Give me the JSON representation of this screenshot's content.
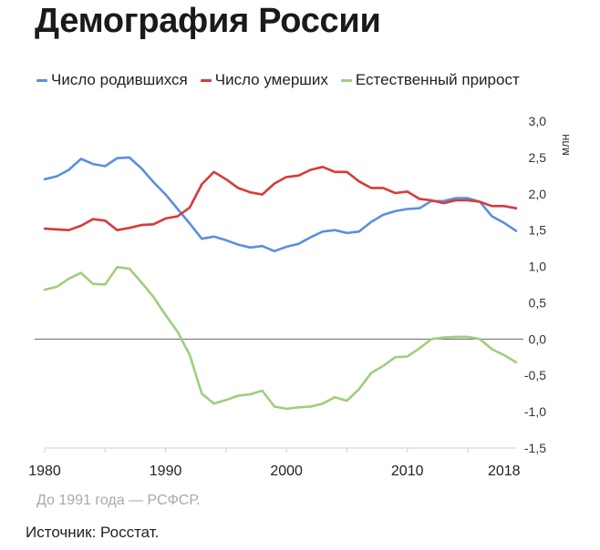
{
  "title": "Демография России",
  "note": "До 1991 года — РСФСР.",
  "source": "Источник: Росстат.",
  "chart_data": {
    "type": "line",
    "title": "Демография России",
    "ylabel": "млн",
    "xlabel": "",
    "ylim": [
      -1.5,
      3.0
    ],
    "xlim": [
      1980,
      2019
    ],
    "x_ticks": [
      {
        "value": 1980,
        "label": "1980"
      },
      {
        "value": 1990,
        "label": "1990"
      },
      {
        "value": 2000,
        "label": "2000"
      },
      {
        "value": 2010,
        "label": "2010"
      },
      {
        "value": 2018,
        "label": "2018"
      }
    ],
    "y_ticks": [
      {
        "value": 3.0,
        "label": "3,0"
      },
      {
        "value": 2.5,
        "label": "2,5"
      },
      {
        "value": 2.0,
        "label": "2,0"
      },
      {
        "value": 1.5,
        "label": "1,5"
      },
      {
        "value": 1.0,
        "label": "1,0"
      },
      {
        "value": 0.5,
        "label": "0,5"
      },
      {
        "value": 0.0,
        "label": "0,0"
      },
      {
        "value": -0.5,
        "label": "-0,5"
      },
      {
        "value": -1.0,
        "label": "-1,0"
      },
      {
        "value": -1.5,
        "label": "-1,5"
      }
    ],
    "legend_position": "top",
    "grid": false,
    "x": [
      1980,
      1981,
      1982,
      1983,
      1984,
      1985,
      1986,
      1987,
      1988,
      1989,
      1990,
      1991,
      1992,
      1993,
      1994,
      1995,
      1996,
      1997,
      1998,
      1999,
      2000,
      2001,
      2002,
      2003,
      2004,
      2005,
      2006,
      2007,
      2008,
      2009,
      2010,
      2011,
      2012,
      2013,
      2014,
      2015,
      2016,
      2017,
      2018,
      2019
    ],
    "series": [
      {
        "name": "Число родившихся",
        "color": "#5b8fe0",
        "values": [
          2.2,
          2.24,
          2.33,
          2.48,
          2.41,
          2.38,
          2.49,
          2.5,
          2.35,
          2.16,
          1.99,
          1.79,
          1.59,
          1.38,
          1.41,
          1.36,
          1.3,
          1.26,
          1.28,
          1.21,
          1.27,
          1.31,
          1.4,
          1.48,
          1.5,
          1.46,
          1.48,
          1.61,
          1.71,
          1.76,
          1.79,
          1.8,
          1.9,
          1.9,
          1.94,
          1.94,
          1.89,
          1.69,
          1.6,
          1.49
        ]
      },
      {
        "name": "Число умерших",
        "color": "#d83a3a",
        "values": [
          1.52,
          1.51,
          1.5,
          1.56,
          1.65,
          1.63,
          1.5,
          1.53,
          1.57,
          1.58,
          1.66,
          1.69,
          1.81,
          2.13,
          2.3,
          2.2,
          2.08,
          2.02,
          1.99,
          2.14,
          2.23,
          2.25,
          2.33,
          2.37,
          2.3,
          2.3,
          2.17,
          2.08,
          2.08,
          2.01,
          2.03,
          1.93,
          1.91,
          1.87,
          1.91,
          1.91,
          1.89,
          1.83,
          1.83,
          1.8
        ]
      },
      {
        "name": "Естественный прирост",
        "color": "#9dcf7c",
        "values": [
          0.68,
          0.72,
          0.83,
          0.91,
          0.76,
          0.75,
          0.99,
          0.97,
          0.78,
          0.58,
          0.33,
          0.1,
          -0.22,
          -0.75,
          -0.89,
          -0.84,
          -0.78,
          -0.76,
          -0.71,
          -0.93,
          -0.96,
          -0.94,
          -0.93,
          -0.89,
          -0.8,
          -0.85,
          -0.69,
          -0.47,
          -0.37,
          -0.25,
          -0.24,
          -0.13,
          0.0,
          0.02,
          0.03,
          0.03,
          0.0,
          -0.14,
          -0.22,
          -0.32
        ]
      }
    ]
  }
}
